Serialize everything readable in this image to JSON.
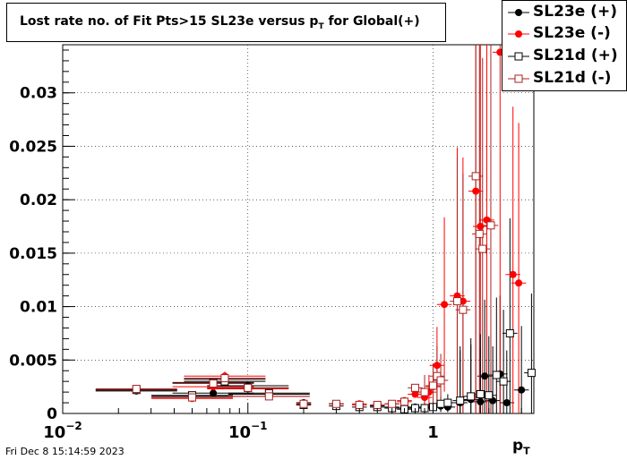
{
  "chart_data": {
    "type": "scatter",
    "title_main": "Lost rate no. of Fit Pts>15 SL23e versus p",
    "title_sub": "T",
    "title_tail": " for Global(+)",
    "xlabel_main": "p",
    "xlabel_sub": "T",
    "x_scale": "log",
    "xlim": [
      0.01,
      3.5
    ],
    "ylim": [
      0,
      0.0345
    ],
    "x_tick_labels": [
      {
        "base": "10",
        "exp": "−2",
        "value": 0.01
      },
      {
        "base": "10",
        "exp": "−1",
        "value": 0.1
      },
      {
        "base": "1",
        "exp": "",
        "value": 1
      }
    ],
    "y_ticks": [
      0,
      0.005,
      0.01,
      0.015,
      0.02,
      0.025,
      0.03
    ],
    "y_tick_labels": [
      "0",
      "0.005",
      "0.01",
      "0.015",
      "0.02",
      "0.025",
      "0.03"
    ],
    "grid": true,
    "legend_position": "top-right",
    "series": [
      {
        "name": "SL23e (+)",
        "marker": "filled-circle",
        "color": "#000000",
        "points": [
          {
            "x": 0.025,
            "y": 0.0021
          },
          {
            "x": 0.05,
            "y": 0.0016
          },
          {
            "x": 0.065,
            "y": 0.0019
          },
          {
            "x": 0.075,
            "y": 0.0032
          },
          {
            "x": 0.1,
            "y": 0.0026
          },
          {
            "x": 0.13,
            "y": 0.0018
          },
          {
            "x": 0.2,
            "y": 0.001
          },
          {
            "x": 0.3,
            "y": 0.0009
          },
          {
            "x": 0.4,
            "y": 0.0008
          },
          {
            "x": 0.5,
            "y": 0.0007
          },
          {
            "x": 0.6,
            "y": 0.0006
          },
          {
            "x": 0.7,
            "y": 0.0005
          },
          {
            "x": 0.8,
            "y": 0.0006
          },
          {
            "x": 0.9,
            "y": 0.0005
          },
          {
            "x": 1.0,
            "y": 0.0006
          },
          {
            "x": 1.1,
            "y": 0.0007
          },
          {
            "x": 1.2,
            "y": 0.0006
          },
          {
            "x": 1.4,
            "y": 0.001
          },
          {
            "x": 1.6,
            "y": 0.0013
          },
          {
            "x": 1.8,
            "y": 0.0011
          },
          {
            "x": 1.9,
            "y": 0.0035
          },
          {
            "x": 2.1,
            "y": 0.0012
          },
          {
            "x": 2.3,
            "y": 0.0037
          },
          {
            "x": 2.5,
            "y": 0.001
          },
          {
            "x": 3.0,
            "y": 0.0022
          }
        ]
      },
      {
        "name": "SL23e (-)",
        "marker": "filled-circle",
        "color": "#ff0000",
        "points": [
          {
            "x": 0.025,
            "y": 0.0022
          },
          {
            "x": 0.05,
            "y": 0.0014
          },
          {
            "x": 0.065,
            "y": 0.0025
          },
          {
            "x": 0.075,
            "y": 0.0035
          },
          {
            "x": 0.1,
            "y": 0.0023
          },
          {
            "x": 0.13,
            "y": 0.0016
          },
          {
            "x": 0.2,
            "y": 0.0009
          },
          {
            "x": 0.3,
            "y": 0.0009
          },
          {
            "x": 0.4,
            "y": 0.0009
          },
          {
            "x": 0.5,
            "y": 0.0008
          },
          {
            "x": 0.6,
            "y": 0.0009
          },
          {
            "x": 0.7,
            "y": 0.0012
          },
          {
            "x": 0.8,
            "y": 0.0018
          },
          {
            "x": 0.9,
            "y": 0.0015
          },
          {
            "x": 0.95,
            "y": 0.002
          },
          {
            "x": 1.0,
            "y": 0.0025
          },
          {
            "x": 1.05,
            "y": 0.0045
          },
          {
            "x": 1.15,
            "y": 0.0102
          },
          {
            "x": 1.35,
            "y": 0.011
          },
          {
            "x": 1.45,
            "y": 0.0105
          },
          {
            "x": 1.7,
            "y": 0.0208
          },
          {
            "x": 1.8,
            "y": 0.0175
          },
          {
            "x": 1.95,
            "y": 0.0181
          },
          {
            "x": 2.3,
            "y": 0.0338
          },
          {
            "x": 2.7,
            "y": 0.013
          },
          {
            "x": 2.9,
            "y": 0.0122
          }
        ]
      },
      {
        "name": "SL21d (+)",
        "marker": "open-square",
        "color": "#000000",
        "points": [
          {
            "x": 0.025,
            "y": 0.0022
          },
          {
            "x": 0.05,
            "y": 0.0017
          },
          {
            "x": 0.065,
            "y": 0.0029
          },
          {
            "x": 0.075,
            "y": 0.003
          },
          {
            "x": 0.1,
            "y": 0.0024
          },
          {
            "x": 0.13,
            "y": 0.0019
          },
          {
            "x": 0.2,
            "y": 0.0008
          },
          {
            "x": 0.3,
            "y": 0.0007
          },
          {
            "x": 0.4,
            "y": 0.0006
          },
          {
            "x": 0.5,
            "y": 0.0006
          },
          {
            "x": 0.6,
            "y": 0.0005
          },
          {
            "x": 0.7,
            "y": 0.0004
          },
          {
            "x": 0.8,
            "y": 0.0005
          },
          {
            "x": 0.9,
            "y": 0.0005
          },
          {
            "x": 1.0,
            "y": 0.0006
          },
          {
            "x": 1.1,
            "y": 0.0009
          },
          {
            "x": 1.2,
            "y": 0.001
          },
          {
            "x": 1.4,
            "y": 0.0012
          },
          {
            "x": 1.6,
            "y": 0.0016
          },
          {
            "x": 1.8,
            "y": 0.0018
          },
          {
            "x": 2.0,
            "y": 0.0017
          },
          {
            "x": 2.2,
            "y": 0.0036
          },
          {
            "x": 2.4,
            "y": 0.003
          },
          {
            "x": 2.6,
            "y": 0.0075
          },
          {
            "x": 3.4,
            "y": 0.0038
          }
        ]
      },
      {
        "name": "SL21d (-)",
        "marker": "open-square",
        "color": "#aa2222",
        "points": [
          {
            "x": 0.025,
            "y": 0.0023
          },
          {
            "x": 0.05,
            "y": 0.0015
          },
          {
            "x": 0.065,
            "y": 0.0028
          },
          {
            "x": 0.075,
            "y": 0.0033
          },
          {
            "x": 0.1,
            "y": 0.0024
          },
          {
            "x": 0.13,
            "y": 0.0016
          },
          {
            "x": 0.2,
            "y": 0.0009
          },
          {
            "x": 0.3,
            "y": 0.0009
          },
          {
            "x": 0.4,
            "y": 0.0008
          },
          {
            "x": 0.5,
            "y": 0.0008
          },
          {
            "x": 0.6,
            "y": 0.0009
          },
          {
            "x": 0.7,
            "y": 0.0011
          },
          {
            "x": 0.8,
            "y": 0.0024
          },
          {
            "x": 0.9,
            "y": 0.002
          },
          {
            "x": 1.0,
            "y": 0.0026
          },
          {
            "x": 1.05,
            "y": 0.0035
          },
          {
            "x": 1.1,
            "y": 0.0031
          },
          {
            "x": 1.35,
            "y": 0.0105
          },
          {
            "x": 1.45,
            "y": 0.0097
          },
          {
            "x": 1.7,
            "y": 0.0222
          },
          {
            "x": 1.78,
            "y": 0.0168
          },
          {
            "x": 1.85,
            "y": 0.0154
          },
          {
            "x": 2.05,
            "y": 0.0176
          }
        ]
      }
    ]
  },
  "footer": {
    "timestamp": "Fri Dec  8 15:14:59 2023"
  }
}
